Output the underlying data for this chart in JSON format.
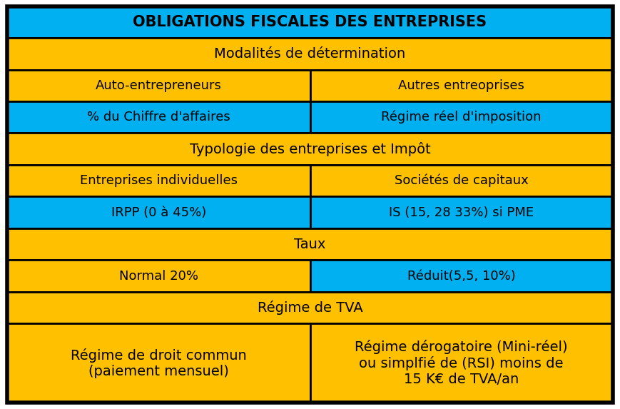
{
  "yellow": "#FFC000",
  "cyan": "#00B0F0",
  "text_color": "#000000",
  "border_color": "#000000",
  "rows": [
    {
      "type": "full",
      "bg": "#00B0F0",
      "text": "OBLIGATIONS FISCALES DES ENTREPRISES",
      "bold": true,
      "fontsize": 15
    },
    {
      "type": "full",
      "bg": "#FFC000",
      "text": "Modalités de détermination",
      "bold": false,
      "fontsize": 14
    },
    {
      "type": "half",
      "bg_left": "#FFC000",
      "bg_right": "#FFC000",
      "text_left": "Auto-entrepreneurs",
      "text_right": "Autres entreoprises",
      "fontsize": 13
    },
    {
      "type": "half",
      "bg_left": "#00B0F0",
      "bg_right": "#00B0F0",
      "text_left": "% du Chiffre d'affaires",
      "text_right": "Régime réel d'imposition",
      "fontsize": 13
    },
    {
      "type": "full",
      "bg": "#FFC000",
      "text": "Typologie des entreprises et Impôt",
      "bold": false,
      "fontsize": 14
    },
    {
      "type": "half",
      "bg_left": "#FFC000",
      "bg_right": "#FFC000",
      "text_left": "Entreprises individuelles",
      "text_right": "Sociétés de capitaux",
      "fontsize": 13
    },
    {
      "type": "half",
      "bg_left": "#00B0F0",
      "bg_right": "#00B0F0",
      "text_left": "IRPP (0 à 45%)",
      "text_right": "IS (15, 28 33%) si PME",
      "fontsize": 13
    },
    {
      "type": "full",
      "bg": "#FFC000",
      "text": "Taux",
      "bold": false,
      "fontsize": 14
    },
    {
      "type": "half",
      "bg_left": "#FFC000",
      "bg_right": "#00B0F0",
      "text_left": "Normal 20%",
      "text_right": "Réduit(5,5, 10%)",
      "fontsize": 13
    },
    {
      "type": "full",
      "bg": "#FFC000",
      "text": "Régime de TVA",
      "bold": false,
      "fontsize": 14
    },
    {
      "type": "half_tall",
      "bg_left": "#FFC000",
      "bg_right": "#FFC000",
      "text_left": "Régime de droit commun\n(paiement mensuel)",
      "text_right": "Régime dérogatoire (Mini-réel)\nou simplfié de (RSI) moins de\n15 K€ de TVA/an",
      "fontsize": 14
    }
  ],
  "row_heights": [
    1.0,
    1.0,
    1.0,
    1.0,
    1.0,
    1.0,
    1.0,
    1.0,
    1.0,
    1.0,
    2.5
  ],
  "border_lw": 2.0
}
